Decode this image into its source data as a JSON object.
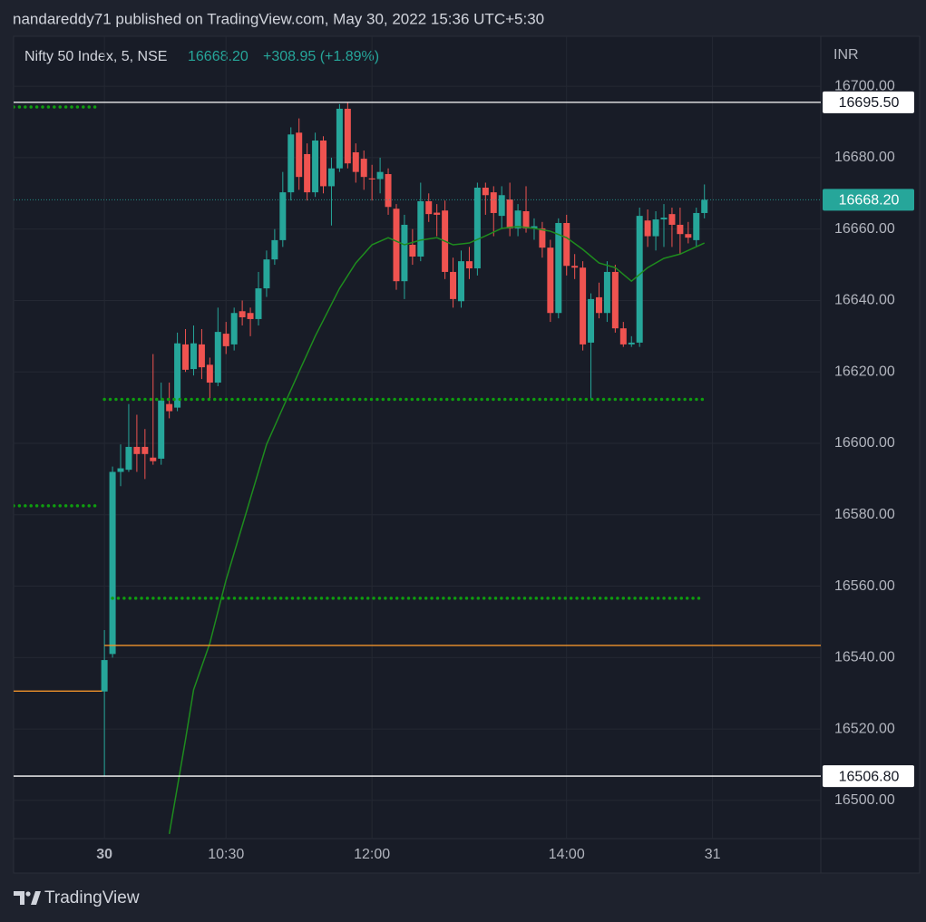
{
  "chart_data": {
    "type": "candlestick",
    "header": "nandareddy71 published on TradingView.com, May 30, 2022 15:36 UTC+5:30",
    "symbol": "Nifty 50 Index, 5, NSE",
    "last": "16668.20",
    "change": "+308.95 (+1.89%)",
    "currency": "INR",
    "brand": "TradingView",
    "up_color": "#26a69a",
    "down_color": "#ef5350",
    "grid": true,
    "xlim": [
      -11.2,
      88.35
    ],
    "ylim": [
      16489.3,
      16714
    ],
    "xticks": [
      {
        "value": 0,
        "label": "30"
      },
      {
        "value": 15,
        "label": "10:30"
      },
      {
        "value": 33,
        "label": "12:00"
      },
      {
        "value": 57,
        "label": "14:00"
      },
      {
        "value": 75,
        "label": "31"
      }
    ],
    "yticks": [
      {
        "value": 16500,
        "label": "16500.00"
      },
      {
        "value": 16520,
        "label": "16520.00"
      },
      {
        "value": 16540,
        "label": "16540.00"
      },
      {
        "value": 16560,
        "label": "16560.00"
      },
      {
        "value": 16580,
        "label": "16580.00"
      },
      {
        "value": 16600,
        "label": "16600.00"
      },
      {
        "value": 16620,
        "label": "16620.00"
      },
      {
        "value": 16640,
        "label": "16640.00"
      },
      {
        "value": 16660,
        "label": "16660.00"
      },
      {
        "value": 16680,
        "label": "16680.00"
      },
      {
        "value": 16700,
        "label": "16700.00"
      }
    ],
    "x": [
      0,
      1,
      2,
      3,
      4,
      5,
      6,
      7,
      8,
      9,
      10,
      11,
      12,
      13,
      14,
      15,
      16,
      17,
      18,
      19,
      20,
      21,
      22,
      23,
      24,
      25,
      26,
      27,
      28,
      29,
      30,
      31,
      32,
      33,
      34,
      35,
      36,
      37,
      38,
      39,
      40,
      41,
      42,
      43,
      44,
      45,
      46,
      47,
      48,
      49,
      50,
      51,
      52,
      53,
      54,
      55,
      56,
      57,
      58,
      59,
      60,
      61,
      62,
      63,
      64,
      65,
      66,
      67,
      68,
      69,
      70,
      71,
      72,
      73,
      74
    ],
    "open": [
      16530.5,
      16541.0,
      16592.0,
      16592.6,
      16599.0,
      16599.0,
      16596.0,
      16595.7,
      16611.0,
      16610.0,
      16627.7,
      16620.8,
      16627.7,
      16622.0,
      16617.0,
      16630.7,
      16627.7,
      16637.0,
      16636.5,
      16634.8,
      16643.4,
      16651.5,
      16656.9,
      16670.3,
      16687.0,
      16681.0,
      16670.3,
      16684.8,
      16672.0,
      16677.0,
      16693.7,
      16681.5,
      16679.7,
      16674.2,
      16674.0,
      16675.4,
      16665.7,
      16645.4,
      16655.6,
      16652.3,
      16667.8,
      16664.6,
      16665.2,
      16648.0,
      16639.8,
      16651.0,
      16649.0,
      16671.6,
      16670.3,
      16663.7,
      16668.3,
      16660.2,
      16665.0,
      16660.2,
      16660.2,
      16654.8,
      16636.5,
      16661.7,
      16649.7,
      16649.2,
      16628.2,
      16640.9,
      16636.5,
      16648.0,
      16632.2,
      16627.7,
      16628.2,
      16662.4,
      16658.0,
      16662.7,
      16664.2,
      16661.2,
      16658.6,
      16656.9,
      16664.5
    ],
    "high": [
      16547.7,
      16593.5,
      16599.7,
      16611.0,
      16608.0,
      16604.0,
      16625.0,
      16617.0,
      16617.0,
      16631.0,
      16632.0,
      16633.0,
      16632.0,
      16624.0,
      16638.0,
      16634.0,
      16638.0,
      16640.0,
      16638.0,
      16648.0,
      16654.0,
      16660.0,
      16676.0,
      16688.5,
      16691.0,
      16684.0,
      16687.0,
      16686.0,
      16680.0,
      16695.0,
      16695.5,
      16684.0,
      16682.0,
      16678.0,
      16680.0,
      16677.0,
      16667.0,
      16664.0,
      16660.0,
      16673.0,
      16670.0,
      16667.0,
      16668.0,
      16652.0,
      16654.0,
      16655.0,
      16673.0,
      16673.0,
      16672.0,
      16672.0,
      16673.0,
      16667.0,
      16672.0,
      16663.0,
      16662.0,
      16657.0,
      16663.0,
      16664.0,
      16653.0,
      16651.0,
      16642.0,
      16645.0,
      16651.0,
      16650.0,
      16634.0,
      16630.0,
      16666.0,
      16665.5,
      16665.0,
      16667.0,
      16666.0,
      16666.0,
      16662.0,
      16666.0,
      16672.5
    ],
    "low": [
      16506.8,
      16540.0,
      16588.0,
      16592.0,
      16592.0,
      16590.0,
      16594.0,
      16594.0,
      16607.0,
      16609.0,
      16620.0,
      16619.0,
      16618.0,
      16612.0,
      16616.0,
      16625.0,
      16626.0,
      16633.0,
      16630.0,
      16633.0,
      16641.0,
      16650.0,
      16655.0,
      16668.0,
      16671.0,
      16668.0,
      16669.0,
      16670.0,
      16661.0,
      16676.0,
      16677.0,
      16673.0,
      16671.0,
      16668.0,
      16670.0,
      16664.0,
      16643.0,
      16640.4,
      16650.0,
      16651.0,
      16662.0,
      16658.0,
      16646.0,
      16638.0,
      16638.0,
      16646.0,
      16647.0,
      16664.0,
      16658.0,
      16660.0,
      16658.0,
      16658.0,
      16659.0,
      16657.0,
      16652.0,
      16634.0,
      16635.0,
      16647.0,
      16646.0,
      16626.0,
      16612.4,
      16635.0,
      16634.0,
      16631.0,
      16627.0,
      16627.0,
      16627.0,
      16655.0,
      16654.0,
      16655.0,
      16655.0,
      16653.0,
      16656.0,
      16655.0,
      16663.0
    ],
    "close": [
      16539.3,
      16592.0,
      16593.0,
      16599.0,
      16597.0,
      16597.0,
      16595.0,
      16612.0,
      16609.0,
      16628.0,
      16620.6,
      16628.0,
      16621.3,
      16617.0,
      16631.2,
      16627.2,
      16636.5,
      16635.3,
      16634.8,
      16643.4,
      16651.5,
      16656.9,
      16670.3,
      16686.5,
      16674.6,
      16670.3,
      16684.8,
      16672.0,
      16677.0,
      16693.7,
      16678.4,
      16676.0,
      16674.6,
      16673.9,
      16676.0,
      16666.2,
      16645.4,
      16661.2,
      16652.3,
      16667.8,
      16664.2,
      16664.0,
      16648.0,
      16640.4,
      16651.0,
      16649.0,
      16671.6,
      16669.5,
      16664.5,
      16669.5,
      16660.2,
      16665.2,
      16660.2,
      16660.8,
      16654.8,
      16636.5,
      16661.7,
      16649.7,
      16649.2,
      16627.7,
      16640.4,
      16636.5,
      16648.0,
      16632.2,
      16627.7,
      16628.2,
      16663.7,
      16658.0,
      16662.7,
      16663.2,
      16661.2,
      16658.6,
      16657.6,
      16664.5,
      16668.2
    ],
    "ma": {
      "color": "#1e8c1e",
      "x": [
        8,
        10,
        11,
        13,
        15,
        17,
        20,
        22,
        24,
        26,
        29,
        31,
        33,
        35,
        37,
        39,
        41,
        43,
        45,
        47,
        49,
        51,
        53,
        55,
        57,
        59,
        61,
        63,
        65,
        67,
        69,
        71,
        74
      ],
      "values": [
        16490.6,
        16517,
        16531,
        16544,
        16561.7,
        16576.9,
        16599.7,
        16609.9,
        16620,
        16630,
        16643.4,
        16650.5,
        16655.6,
        16657.6,
        16655.6,
        16656.9,
        16657.6,
        16655.6,
        16656.1,
        16658.1,
        16660.2,
        16660.7,
        16660.2,
        16659.4,
        16657.6,
        16654.3,
        16650.5,
        16649.2,
        16645.4,
        16649.2,
        16651.8,
        16653.0,
        16656.1
      ]
    },
    "levels": [
      {
        "value": 16695.5,
        "label": "16695.50",
        "color": "#ffffff",
        "style": "solid"
      },
      {
        "value": 16506.8,
        "label": "16506.80",
        "color": "#ffffff",
        "style": "solid"
      },
      {
        "value": 16668.2,
        "label": "16668.20",
        "color": "#26a69a",
        "style": "dotted"
      },
      {
        "value": 16694.2,
        "color": "#0f9d0f",
        "style": "dots",
        "x": [
          -11.2,
          -0.7
        ]
      },
      {
        "value": 16582.5,
        "color": "#0f9d0f",
        "style": "dots",
        "x": [
          -11.2,
          -0.7
        ]
      },
      {
        "value": 16612.3,
        "color": "#0f9d0f",
        "style": "dots",
        "x": [
          0,
          74
        ]
      },
      {
        "value": 16556.6,
        "color": "#0f9d0f",
        "style": "dots",
        "x": [
          1,
          74
        ]
      },
      {
        "value": 16543.4,
        "color": "#f0932b",
        "style": "solid",
        "x": [
          0,
          88.35
        ]
      },
      {
        "value": 16530.6,
        "color": "#f0932b",
        "style": "solid",
        "x": [
          -11.2,
          -0.3
        ]
      }
    ]
  }
}
